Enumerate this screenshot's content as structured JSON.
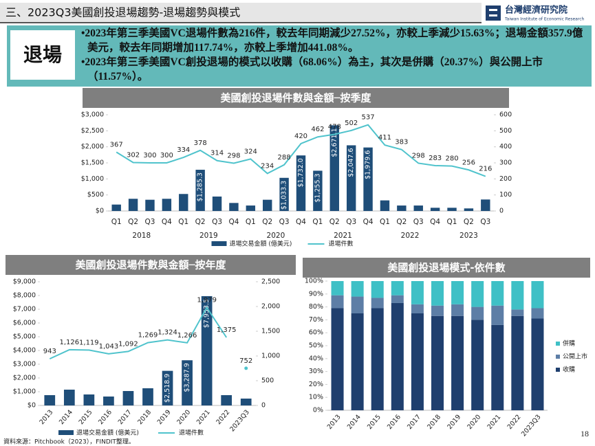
{
  "header": {
    "title": "三、2023Q3美國創投退場趨勢-退場趨勢與模式",
    "logo": "台灣經濟研究院",
    "logo_en": "Taiwan Institute of Economic Research"
  },
  "summary": {
    "heading": "退場",
    "bullets": [
      "•2023年第三季美國VC退場件數為216件，較去年同期減少27.52%，亦較上季減少15.63%；退場金額357.9億美元，較去年同期增加117.74%，亦較上季增加441.08%。",
      "•2023年第三季美國VC創投退場的模式以收購（68.06%）為主，其次是併購（20.37%）與公開上市（11.57%）。"
    ]
  },
  "chart_data": [
    {
      "type": "bar_line",
      "title": "美國創投退場件數與金額─按季度",
      "categories": [
        "Q1",
        "Q2",
        "Q3",
        "Q4",
        "Q1",
        "Q2",
        "Q3",
        "Q4",
        "Q1",
        "Q2",
        "Q3",
        "Q4",
        "Q1",
        "Q2",
        "Q3",
        "Q4",
        "Q1",
        "Q2",
        "Q3",
        "Q4",
        "Q1",
        "Q2",
        "Q3"
      ],
      "groups": [
        "2018",
        "2019",
        "2020",
        "2021",
        "2022",
        "2023"
      ],
      "series": [
        {
          "name": "退場交易金額 (億美元)",
          "color": "#1f4e79",
          "values": [
            200,
            380,
            350,
            380,
            530,
            1285.3,
            450,
            250,
            170,
            350,
            1033.3,
            1732.0,
            1255.3,
            2671.1,
            2047.6,
            1979.6,
            330,
            170,
            170,
            100,
            100,
            80,
            357.9
          ],
          "value_labels": [
            null,
            null,
            null,
            null,
            null,
            "$1,285.3",
            null,
            null,
            null,
            null,
            "$1,033.3",
            "$1,732.0",
            "$1,255.3",
            "$2,671.1",
            "$2,047.6",
            "$1,979.6",
            null,
            null,
            null,
            null,
            null,
            null,
            null
          ]
        },
        {
          "name": "退場件數",
          "color": "#4fc3cc",
          "axis": "y2",
          "values": [
            367,
            302,
            300,
            300,
            334,
            378,
            314,
            298,
            324,
            234,
            288,
            420,
            462,
            478,
            502,
            537,
            411,
            383,
            298,
            283,
            280,
            256,
            216
          ]
        }
      ],
      "ylim": [
        0,
        3000
      ],
      "yticks": [
        {
          "value": 0,
          "label": "$0"
        },
        {
          "value": 500,
          "label": "$500"
        },
        {
          "value": 1000,
          "label": "$1,000"
        },
        {
          "value": 1500,
          "label": "$1,500"
        },
        {
          "value": 2000,
          "label": "$2,000"
        },
        {
          "value": 2500,
          "label": "$2,500"
        },
        {
          "value": 3000,
          "label": "$3,000"
        }
      ],
      "y2lim": [
        0,
        600
      ],
      "y2ticks": [
        0,
        100,
        200,
        300,
        400,
        500,
        600
      ],
      "legend": "bottom"
    },
    {
      "type": "bar_line",
      "title": "美國創投退場件數與金額─按年度",
      "categories": [
        "2013",
        "2014",
        "2015",
        "2016",
        "2017",
        "2018",
        "2019",
        "2020",
        "2021",
        "2022",
        "2023Q3"
      ],
      "line_break_before_last": true,
      "series": [
        {
          "name": "退場交易金額 (億美元)",
          "color": "#1f4e79",
          "values": [
            750,
            1150,
            800,
            650,
            1050,
            1250,
            2518.9,
            3287.9,
            7953.5,
            750,
            500
          ],
          "value_labels": [
            null,
            null,
            null,
            null,
            null,
            null,
            "$2,518.9",
            "$3,287.9",
            "$7,953.5",
            null,
            null
          ]
        },
        {
          "name": "退場件數",
          "color": "#4fc3cc",
          "axis": "y2",
          "values": [
            943,
            1126,
            1119,
            1043,
            1092,
            1269,
            1324,
            1266,
            1979,
            1375,
            752
          ],
          "value_labels": [
            "943",
            "1,126",
            "1,119",
            "1,043",
            "1,092",
            "1,269",
            "1,324",
            "1,266",
            "1,979",
            "1,375",
            "752"
          ]
        }
      ],
      "ylim": [
        0,
        9000
      ],
      "yticks": [
        {
          "value": 0,
          "label": "$0"
        },
        {
          "value": 1000,
          "label": "$1,000"
        },
        {
          "value": 2000,
          "label": "$2,000"
        },
        {
          "value": 3000,
          "label": "$3,000"
        },
        {
          "value": 4000,
          "label": "$4,000"
        },
        {
          "value": 5000,
          "label": "$5,000"
        },
        {
          "value": 6000,
          "label": "$6,000"
        },
        {
          "value": 7000,
          "label": "$7,000"
        },
        {
          "value": 8000,
          "label": "$8,000"
        },
        {
          "value": 9000,
          "label": "$9,000"
        }
      ],
      "y2lim": [
        0,
        2500
      ],
      "y2ticks": [
        0,
        500,
        {
          "value": 1000,
          "label": "1,000"
        },
        {
          "value": 1500,
          "label": "1,500"
        },
        {
          "value": 2000,
          "label": "2,000"
        },
        {
          "value": 2500,
          "label": "2,500"
        }
      ],
      "legend": "bottom"
    },
    {
      "type": "stacked_bar",
      "title": "美國創投退場模式-依件數",
      "categories": [
        "2013",
        "2014",
        "2015",
        "2016",
        "2017",
        "2018",
        "2019",
        "2020",
        "2021",
        "2022",
        "2023Q3"
      ],
      "series": [
        {
          "name": "收購",
          "color": "#1f3f6e",
          "values": [
            79,
            75,
            79,
            83,
            75,
            73,
            73,
            70,
            66,
            73,
            71
          ]
        },
        {
          "name": "公開上市",
          "color": "#5d7ea6",
          "values": [
            10,
            13,
            8,
            6,
            7,
            8,
            9,
            10,
            15,
            5,
            8
          ]
        },
        {
          "name": "併購",
          "color": "#3fc0c6",
          "values": [
            11,
            12,
            13,
            11,
            18,
            19,
            18,
            20,
            19,
            22,
            21
          ]
        }
      ],
      "ylim": [
        0,
        100
      ],
      "yticks": [
        {
          "value": 0,
          "label": "0%"
        },
        {
          "value": 10,
          "label": "10%"
        },
        {
          "value": 20,
          "label": "20%"
        },
        {
          "value": 30,
          "label": "30%"
        },
        {
          "value": 40,
          "label": "40%"
        },
        {
          "value": 50,
          "label": "50%"
        },
        {
          "value": 60,
          "label": "60%"
        },
        {
          "value": 70,
          "label": "70%"
        },
        {
          "value": 80,
          "label": "80%"
        },
        {
          "value": 90,
          "label": "90%"
        },
        {
          "value": 100,
          "label": "100%"
        }
      ],
      "legend": "right"
    }
  ],
  "footer": {
    "source": "資料來源：Pitchbook（2023），FINDIT整理。",
    "page": "18"
  }
}
